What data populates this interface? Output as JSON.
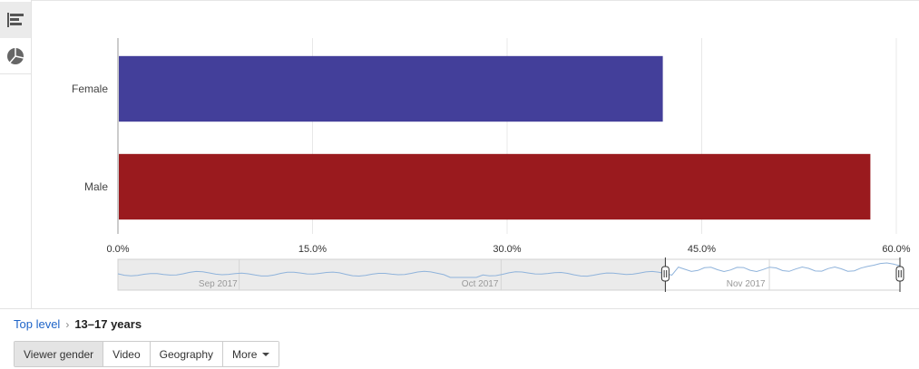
{
  "chart_data": {
    "type": "bar",
    "orientation": "horizontal",
    "categories": [
      "Female",
      "Male"
    ],
    "values": [
      42.0,
      58.0
    ],
    "unit": "%",
    "xlim": [
      0,
      60
    ],
    "x_ticks": [
      "0.0%",
      "15.0%",
      "30.0%",
      "45.0%",
      "60.0%"
    ],
    "colors": [
      "#433f9a",
      "#9a1a1e"
    ],
    "grid": true
  },
  "timeline": {
    "labels": [
      "Sep 2017",
      "Oct 2017",
      "Nov 2017"
    ],
    "selection_start": 0.7,
    "selection_end": 1.0,
    "line_color": "#8fb3db"
  },
  "breadcrumb": {
    "root": "Top level",
    "separator": "›",
    "current": "13–17 years"
  },
  "tabs": [
    {
      "label": "Viewer gender",
      "active": true
    },
    {
      "label": "Video",
      "active": false
    },
    {
      "label": "Geography",
      "active": false
    },
    {
      "label": "More",
      "active": false
    }
  ],
  "chart_types": {
    "bar": "bar-chart-icon",
    "pie": "pie-chart-icon"
  }
}
